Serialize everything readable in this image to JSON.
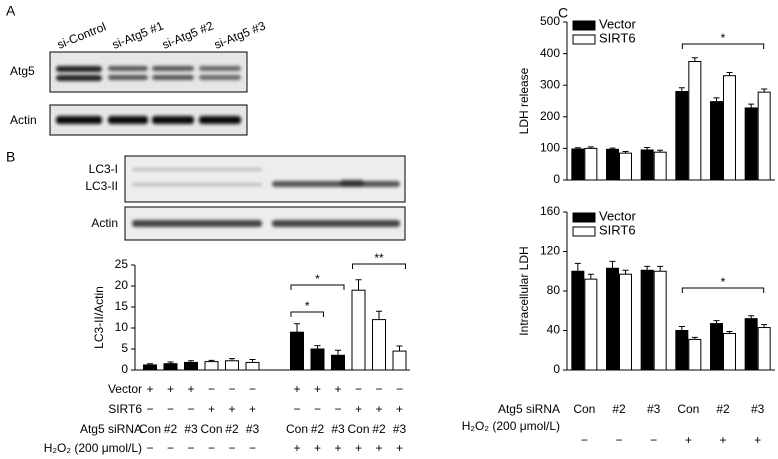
{
  "panel_labels": [
    "A",
    "B",
    "C"
  ],
  "blots": {
    "a_lanes": [
      "si-Control",
      "si-Atg5 #1",
      "si-Atg5 #2",
      "si-Atg5 #3"
    ],
    "a_rows": [
      "Atg5",
      "Actin"
    ],
    "b_rows": [
      "LC3-I",
      "LC3-II",
      "Actin"
    ]
  },
  "chart_data": [
    {
      "type": "bar",
      "y_label": "LC3-II/Actin",
      "categories": [
        "Con",
        "#2",
        "#3",
        "Con",
        "#2",
        "#3",
        "Con",
        "#2",
        "#3",
        "Con",
        "#2",
        "#3"
      ],
      "category_label": "Atg5 siRNA",
      "values": [
        1.2,
        1.5,
        1.8,
        2,
        2.2,
        1.8,
        9,
        5,
        3.5,
        19,
        12,
        4.5
      ],
      "errors": [
        0.3,
        0.4,
        0.4,
        0.3,
        0.5,
        0.7,
        2,
        0.8,
        1.2,
        2.5,
        2,
        1.2
      ],
      "colors": [
        "#000",
        "#000",
        "#000",
        "#fff",
        "#fff",
        "#fff",
        "#000",
        "#000",
        "#000",
        "#fff",
        "#fff",
        "#fff"
      ],
      "ylim": [
        0,
        25
      ],
      "yticks": [
        0,
        5,
        10,
        15,
        20,
        25
      ],
      "annotations": [
        "*",
        "*",
        "**"
      ],
      "conditions_above": [
        {
          "label": "Vector",
          "marks": [
            "+",
            "+",
            "+",
            "−",
            "−",
            "−",
            "+",
            "+",
            "+",
            "−",
            "−",
            "−"
          ]
        },
        {
          "label": "SIRT6",
          "marks": [
            "−",
            "−",
            "−",
            "+",
            "+",
            "+",
            "−",
            "−",
            "−",
            "+",
            "+",
            "+"
          ]
        }
      ],
      "conditions_below": [
        {
          "label": "H₂O₂ (200 μmol/L)",
          "marks": [
            "−",
            "−",
            "−",
            "−",
            "−",
            "−",
            "+",
            "+",
            "+",
            "+",
            "+",
            "+"
          ]
        }
      ]
    },
    {
      "type": "bar",
      "y_label": "LDH release",
      "series": [
        {
          "name": "Vector",
          "color": "#000",
          "values": [
            98,
            97,
            95,
            280,
            248,
            228
          ],
          "errors": [
            4,
            4,
            8,
            12,
            12,
            12
          ]
        },
        {
          "name": "SIRT6",
          "color": "#fff",
          "values": [
            100,
            85,
            88,
            375,
            330,
            278
          ],
          "errors": [
            5,
            5,
            6,
            12,
            10,
            10
          ]
        }
      ],
      "ylim": [
        0,
        500
      ],
      "yticks": [
        0,
        100,
        200,
        300,
        400,
        500
      ],
      "annotations": [
        "*"
      ],
      "legend": "top-left"
    },
    {
      "type": "bar",
      "y_label": "Intracellular LDH",
      "categories": [
        "Con",
        "#2",
        "#3",
        "Con",
        "#2",
        "#3"
      ],
      "category_label": "Atg5 siRNA",
      "series": [
        {
          "name": "Vector",
          "color": "#000",
          "values": [
            100,
            103,
            101,
            40,
            47,
            52
          ],
          "errors": [
            8,
            7,
            4,
            4,
            3,
            3
          ]
        },
        {
          "name": "SIRT6",
          "color": "#fff",
          "values": [
            92,
            97,
            100,
            31,
            37,
            43
          ],
          "errors": [
            5,
            4,
            5,
            2,
            2,
            3
          ]
        }
      ],
      "ylim": [
        0,
        160
      ],
      "yticks": [
        0,
        40,
        80,
        120,
        160
      ],
      "annotations": [
        "*"
      ],
      "legend": "top-left",
      "conditions_below": [
        {
          "label": "H₂O₂ (200 μmol/L)",
          "marks": [
            "−",
            "−",
            "−",
            "+",
            "+",
            "+"
          ]
        }
      ]
    }
  ]
}
